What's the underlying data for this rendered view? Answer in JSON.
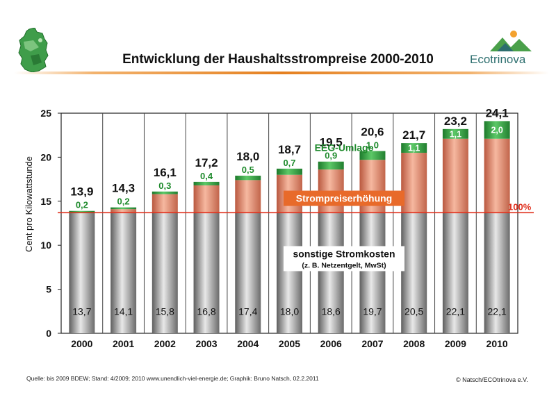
{
  "header": {
    "title": "Entwicklung der Haushaltsstrompreise 2000-2010",
    "brand": "Ecotrinova"
  },
  "footer": {
    "source": "Quelle: bis 2009 BDEW; Stand: 4/2009; 2010 www.unendlich-viel-energie.de; Graphik: Bruno Natsch, 02.2.2011",
    "copyright": "© Natsch/ECOtrinova e.V."
  },
  "chart_data": {
    "type": "bar",
    "stacked": true,
    "title": "Entwicklung der Haushaltsstrompreise 2000-2010",
    "ylabel": "Cent pro Kilowattstunde",
    "xlabel": "",
    "ylim": [
      0,
      25
    ],
    "yticks": [
      "0",
      "5",
      "10",
      "15",
      "20",
      "25"
    ],
    "grid": "vertical",
    "categories": [
      "2000",
      "2001",
      "2002",
      "2003",
      "2004",
      "2005",
      "2006",
      "2007",
      "2008",
      "2009",
      "2010"
    ],
    "series": [
      {
        "values": [
          13.7,
          14.1,
          15.8,
          16.8,
          17.4,
          18.0,
          18.6,
          19.7,
          20.5,
          22.1,
          22.1
        ],
        "labels": [
          "13,7",
          "14,1",
          "15,8",
          "16,8",
          "17,4",
          "18,0",
          "18,6",
          "19,7",
          "20,5",
          "22,1",
          "22,1"
        ],
        "color": "#9a9a9a"
      },
      {
        "values": [
          0.2,
          0.2,
          0.3,
          0.4,
          0.5,
          0.7,
          0.9,
          1.0,
          1.1,
          1.1,
          2.0
        ],
        "labels": [
          "0,2",
          "0,2",
          "0,3",
          "0,4",
          "0,5",
          "0,7",
          "0,9",
          "1,0",
          "1,1",
          "1,1",
          "2,0"
        ],
        "color": "#2e9e3e"
      }
    ],
    "totals": [
      "13,9",
      "14,3",
      "16,1",
      "17,2",
      "18,0",
      "18,7",
      "19,5",
      "20,6",
      "21,7",
      "23,2",
      "24,1"
    ],
    "baseline": {
      "value": 13.7,
      "label": "100%",
      "color": "#e0301e"
    },
    "increase_color": "#e8957a",
    "annotations": {
      "increase": "Strompreiserhöhung",
      "eeg": "EEG-Umlage",
      "other": "sonstige Stromkosten",
      "other_sub": "(z. B. Netzentgelt, MwSt)"
    }
  }
}
